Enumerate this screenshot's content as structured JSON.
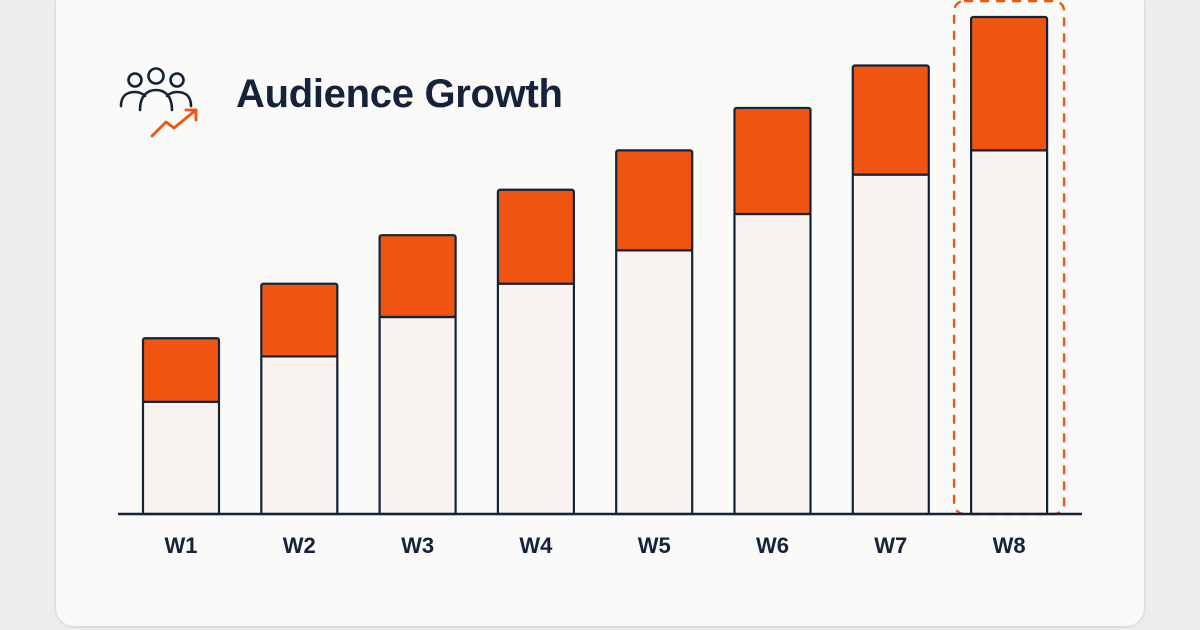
{
  "header": {
    "title": "Audience Growth",
    "icon": "audience-growth-icon"
  },
  "colors": {
    "accent": "#ef5411",
    "base_fill": "#faf4f0",
    "ink": "#14223a"
  },
  "chart_data": {
    "type": "bar",
    "stacked": true,
    "title": "Audience Growth",
    "xlabel": "",
    "ylabel": "",
    "categories": [
      "W1",
      "W2",
      "W3",
      "W4",
      "W5",
      "W6",
      "W7",
      "W8"
    ],
    "series": [
      {
        "values": [
          74,
          104,
          130,
          152,
          174,
          198,
          224,
          240
        ]
      },
      {
        "values": [
          42,
          48,
          54,
          62,
          66,
          70,
          72,
          88
        ]
      }
    ],
    "ylim": [
      0,
      330
    ],
    "grid": false,
    "legend": "none",
    "highlight": {
      "category": "W8",
      "style": "dashed outline with burst marks"
    }
  }
}
